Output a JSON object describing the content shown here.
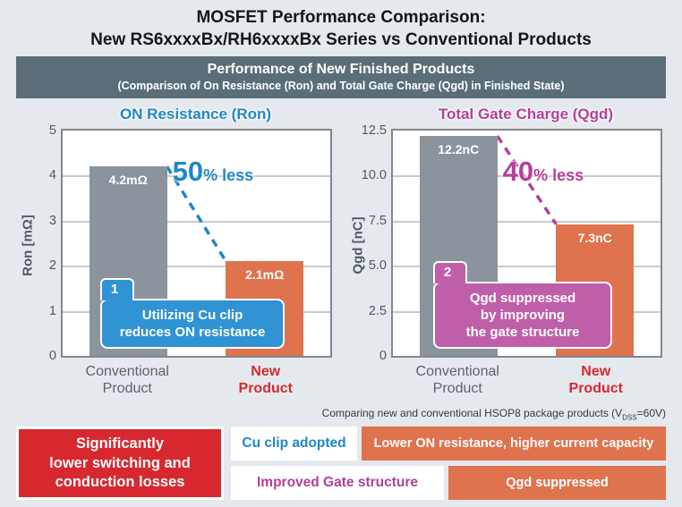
{
  "title": {
    "line1": "MOSFET Performance Comparison:",
    "line2": "New RS6xxxxBx/RH6xxxxBx Series vs Conventional Products"
  },
  "header": {
    "line1": "Performance of New Finished Products",
    "line2": "(Comparison of On Resistance (Ron) and Total Gate Charge (Qgd) in Finished State)"
  },
  "footnote": {
    "prefix": "Comparing new and conventional HSOP8 package products (V",
    "sub": "DSS",
    "suffix": "=60V)"
  },
  "chart_data": [
    {
      "type": "bar",
      "title": "ON Resistance (Ron)",
      "ylabel": "Ron [mΩ]",
      "ylim": [
        0,
        5
      ],
      "ytick_labels": [
        "5",
        "4",
        "3",
        "2",
        "1",
        "0"
      ],
      "categories": [
        {
          "line1": "Conventional",
          "line2": "Product"
        },
        {
          "line1": "New",
          "line2": "Product"
        }
      ],
      "values": [
        4.2,
        2.1
      ],
      "bar_labels": [
        "4.2mΩ",
        "2.1mΩ"
      ],
      "bar_colors": [
        "#8b949c",
        "#df734e"
      ],
      "reduction": {
        "value": "50",
        "suffix": "% less"
      },
      "callout": {
        "number": "1",
        "lines": [
          "Utilizing Cu clip",
          "reduces ON resistance"
        ]
      },
      "grid": true,
      "legend": "none"
    },
    {
      "type": "bar",
      "title": "Total Gate Charge (Qgd)",
      "ylabel": "Qgd [nC]",
      "ylim": [
        0,
        12.5
      ],
      "ytick_labels": [
        "12.5",
        "10.0",
        "7.5",
        "5.0",
        "2.5",
        "0"
      ],
      "categories": [
        {
          "line1": "Conventional",
          "line2": "Product"
        },
        {
          "line1": "New",
          "line2": "Product"
        }
      ],
      "values": [
        12.2,
        7.3
      ],
      "bar_labels": [
        "12.2nC",
        "7.3nC"
      ],
      "bar_colors": [
        "#8b949c",
        "#df734e"
      ],
      "reduction": {
        "value": "40",
        "suffix": "% less"
      },
      "callout": {
        "number": "2",
        "lines": [
          "Qgd suppressed",
          "by improving",
          "the gate structure"
        ]
      },
      "grid": true,
      "legend": "none"
    }
  ],
  "summary": {
    "red_box_lines": [
      "Significantly",
      "lower switching and",
      "conduction losses"
    ],
    "rows": [
      {
        "label": "Cu clip adopted",
        "result": "Lower ON resistance, higher current capacity"
      },
      {
        "label": "Improved Gate structure",
        "result": "Qgd suppressed"
      }
    ]
  },
  "colors": {
    "page_bg": "#e5e9ed",
    "header_bg": "#5b6e78",
    "plot_border": "#7e888f",
    "gridline": "#c6cbd0",
    "tick_text": "#4d5963",
    "bar_gray": "#8b949c",
    "bar_orange": "#df734e",
    "blue": "#1e87c8",
    "blue_callout": "#2f93d4",
    "magenta": "#b43f99",
    "magenta_callout": "#c05fa9",
    "red": "#d7282f",
    "xlabel_gray": "#59656d",
    "footnote_text": "#333a40",
    "title_text": "#151515"
  }
}
